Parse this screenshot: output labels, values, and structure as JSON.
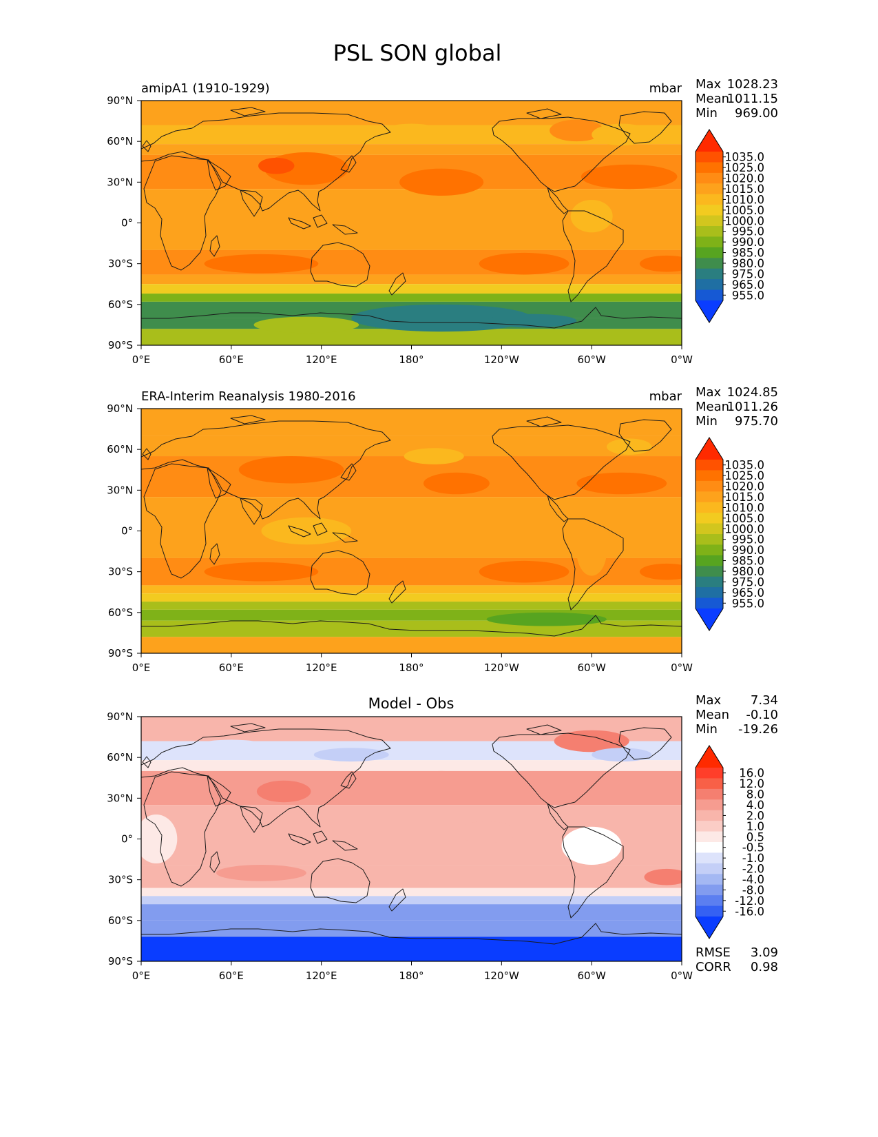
{
  "title": "PSL SON global",
  "chart_data": [
    {
      "type": "heatmap",
      "panel_title": "amipA1 (1910-1929)",
      "units": "mbar",
      "stats": [
        {
          "label": "Max",
          "value": "1028.23"
        },
        {
          "label": "Mean",
          "value": "1011.15"
        },
        {
          "label": "Min",
          "value": "969.00"
        }
      ],
      "x_ticks": [
        "0°E",
        "60°E",
        "120°E",
        "180°",
        "120°W",
        "60°W",
        "0°W"
      ],
      "y_ticks": [
        "90°N",
        "60°N",
        "30°N",
        "0°",
        "30°S",
        "60°S",
        "90°S"
      ],
      "xlim": [
        0,
        360
      ],
      "ylim": [
        -90,
        90
      ],
      "colorbar": {
        "levels": [
          "1035.0",
          "1025.0",
          "1020.0",
          "1015.0",
          "1010.0",
          "1005.0",
          "1000.0",
          "995.0",
          "990.0",
          "985.0",
          "980.0",
          "975.0",
          "965.0",
          "955.0"
        ],
        "colors": [
          "#ff2a00",
          "#ff5200",
          "#ff7200",
          "#ff8c14",
          "#fda21c",
          "#fbb81e",
          "#f2cb20",
          "#d2c61e",
          "#a9be1b",
          "#7fb218",
          "#57a420",
          "#3f8d4c",
          "#2a7e80",
          "#1f6fa3",
          "#1659d4",
          "#0a3dff"
        ]
      },
      "bands": [
        {
          "from": 90,
          "to": 72,
          "value": 1012
        },
        {
          "from": 72,
          "to": 58,
          "value": 1008
        },
        {
          "from": 58,
          "to": 50,
          "value": 1013
        },
        {
          "from": 50,
          "to": 25,
          "value": 1018
        },
        {
          "from": 25,
          "to": -20,
          "value": 1013
        },
        {
          "from": -20,
          "to": -38,
          "value": 1019
        },
        {
          "from": -38,
          "to": -45,
          "value": 1010
        },
        {
          "from": -45,
          "to": -52,
          "value": 1000
        },
        {
          "from": -52,
          "to": -58,
          "value": 988
        },
        {
          "from": -58,
          "to": -70,
          "value": 978
        },
        {
          "from": -70,
          "to": -78,
          "value": 976
        },
        {
          "from": -78,
          "to": -90,
          "value": 990
        }
      ],
      "blobs": [
        {
          "lon": 110,
          "lat": 40,
          "rlon": 28,
          "rlat": 12,
          "value": 1023
        },
        {
          "lon": 90,
          "lat": 42,
          "rlon": 12,
          "rlat": 6,
          "value": 1028
        },
        {
          "lon": 200,
          "lat": 30,
          "rlon": 28,
          "rlat": 10,
          "value": 1020
        },
        {
          "lon": 325,
          "lat": 34,
          "rlon": 32,
          "rlat": 9,
          "value": 1021
        },
        {
          "lon": 80,
          "lat": -30,
          "rlon": 38,
          "rlat": 7,
          "value": 1022
        },
        {
          "lon": 255,
          "lat": -30,
          "rlon": 30,
          "rlat": 8,
          "value": 1022
        },
        {
          "lon": 350,
          "lat": -30,
          "rlon": 18,
          "rlat": 6,
          "value": 1023
        },
        {
          "lon": 290,
          "lat": 68,
          "rlon": 18,
          "rlat": 8,
          "value": 1018
        },
        {
          "lon": 320,
          "lat": 65,
          "rlon": 20,
          "rlat": 8,
          "value": 1006
        },
        {
          "lon": 180,
          "lat": 68,
          "rlon": 18,
          "rlat": 5,
          "value": 1006
        },
        {
          "lon": 200,
          "lat": -70,
          "rlon": 60,
          "rlat": 10,
          "value": 969
        },
        {
          "lon": 110,
          "lat": -75,
          "rlon": 35,
          "rlat": 6,
          "value": 992
        },
        {
          "lon": 260,
          "lat": -72,
          "rlon": 30,
          "rlat": 5,
          "value": 972
        },
        {
          "lon": 300,
          "lat": 5,
          "rlon": 14,
          "rlat": 12,
          "value": 1008
        }
      ]
    },
    {
      "type": "heatmap",
      "panel_title": "ERA-Interim Reanalysis 1980-2016",
      "units": "mbar",
      "stats": [
        {
          "label": "Max",
          "value": "1024.85"
        },
        {
          "label": "Mean",
          "value": "1011.26"
        },
        {
          "label": "Min",
          "value": "975.70"
        }
      ],
      "x_ticks": [
        "0°E",
        "60°E",
        "120°E",
        "180°",
        "120°W",
        "60°W",
        "0°W"
      ],
      "y_ticks": [
        "90°N",
        "60°N",
        "30°N",
        "0°",
        "30°S",
        "60°S",
        "90°S"
      ],
      "xlim": [
        0,
        360
      ],
      "ylim": [
        -90,
        90
      ],
      "colorbar": {
        "levels": [
          "1035.0",
          "1025.0",
          "1020.0",
          "1015.0",
          "1010.0",
          "1005.0",
          "1000.0",
          "995.0",
          "990.0",
          "985.0",
          "980.0",
          "975.0",
          "965.0",
          "955.0"
        ],
        "colors": [
          "#ff2a00",
          "#ff5200",
          "#ff7200",
          "#ff8c14",
          "#fda21c",
          "#fbb81e",
          "#f2cb20",
          "#d2c61e",
          "#a9be1b",
          "#7fb218",
          "#57a420",
          "#3f8d4c",
          "#2a7e80",
          "#1f6fa3",
          "#1659d4",
          "#0a3dff"
        ]
      },
      "bands": [
        {
          "from": 90,
          "to": 70,
          "value": 1013
        },
        {
          "from": 70,
          "to": 55,
          "value": 1012
        },
        {
          "from": 55,
          "to": 25,
          "value": 1016
        },
        {
          "from": 25,
          "to": -20,
          "value": 1013
        },
        {
          "from": -20,
          "to": -40,
          "value": 1017
        },
        {
          "from": -40,
          "to": -46,
          "value": 1008
        },
        {
          "from": -46,
          "to": -52,
          "value": 1000
        },
        {
          "from": -52,
          "to": -58,
          "value": 991
        },
        {
          "from": -58,
          "to": -66,
          "value": 986
        },
        {
          "from": -66,
          "to": -78,
          "value": 990
        },
        {
          "from": -78,
          "to": -90,
          "value": 1012
        }
      ],
      "blobs": [
        {
          "lon": 100,
          "lat": 45,
          "rlon": 35,
          "rlat": 10,
          "value": 1021
        },
        {
          "lon": 210,
          "lat": 35,
          "rlon": 22,
          "rlat": 8,
          "value": 1020
        },
        {
          "lon": 320,
          "lat": 35,
          "rlon": 30,
          "rlat": 8,
          "value": 1020
        },
        {
          "lon": 80,
          "lat": -30,
          "rlon": 38,
          "rlat": 7,
          "value": 1020
        },
        {
          "lon": 255,
          "lat": -30,
          "rlon": 30,
          "rlat": 8,
          "value": 1022
        },
        {
          "lon": 350,
          "lat": -30,
          "rlon": 18,
          "rlat": 6,
          "value": 1023
        },
        {
          "lon": 195,
          "lat": 55,
          "rlon": 20,
          "rlat": 6,
          "value": 1006
        },
        {
          "lon": 325,
          "lat": 62,
          "rlon": 15,
          "rlat": 6,
          "value": 1006
        },
        {
          "lon": 270,
          "lat": -65,
          "rlon": 40,
          "rlat": 5,
          "value": 984
        },
        {
          "lon": 110,
          "lat": 0,
          "rlon": 30,
          "rlat": 10,
          "value": 1009
        },
        {
          "lon": 300,
          "lat": -15,
          "rlon": 10,
          "rlat": 18,
          "value": 1012
        }
      ]
    },
    {
      "type": "heatmap",
      "panel_title": "Model - Obs",
      "units": "",
      "stats": [
        {
          "label": "Max",
          "value": "7.34"
        },
        {
          "label": "Mean",
          "value": "-0.10"
        },
        {
          "label": "Min",
          "value": "-19.26"
        }
      ],
      "footer_stats": [
        {
          "label": "RMSE",
          "value": "3.09"
        },
        {
          "label": "CORR",
          "value": "0.98"
        }
      ],
      "x_ticks": [
        "0°E",
        "60°E",
        "120°E",
        "180°",
        "120°W",
        "60°W",
        "0°W"
      ],
      "y_ticks": [
        "90°N",
        "60°N",
        "30°N",
        "0°",
        "30°S",
        "60°S",
        "90°S"
      ],
      "xlim": [
        0,
        360
      ],
      "ylim": [
        -90,
        90
      ],
      "colorbar": {
        "levels": [
          "16.0",
          "12.0",
          "8.0",
          "4.0",
          "2.0",
          "1.0",
          "0.5",
          "-0.5",
          "-1.0",
          "-2.0",
          "-4.0",
          "-8.0",
          "-12.0",
          "-16.0"
        ],
        "colors": [
          "#ff2a00",
          "#ff3e2a",
          "#f86047",
          "#f57f70",
          "#f69c90",
          "#f8b5ab",
          "#fbcdc6",
          "#fde9e6",
          "#ffffff",
          "#dde3fb",
          "#c4cff7",
          "#a4b8f3",
          "#829cef",
          "#5c7ff0",
          "#3561f3",
          "#0a3dff"
        ]
      },
      "bands": [
        {
          "from": 90,
          "to": 72,
          "value": 1.5
        },
        {
          "from": 72,
          "to": 58,
          "value": -1.5
        },
        {
          "from": 58,
          "to": 50,
          "value": 0
        },
        {
          "from": 50,
          "to": 25,
          "value": 3
        },
        {
          "from": 25,
          "to": 0,
          "value": 1.2
        },
        {
          "from": 0,
          "to": -20,
          "value": 1.2
        },
        {
          "from": -20,
          "to": -36,
          "value": 1.8
        },
        {
          "from": -36,
          "to": -42,
          "value": 0
        },
        {
          "from": -42,
          "to": -48,
          "value": -3
        },
        {
          "from": -48,
          "to": -60,
          "value": -9
        },
        {
          "from": -60,
          "to": -72,
          "value": -11
        },
        {
          "from": -72,
          "to": -90,
          "value": -17
        }
      ],
      "blobs": [
        {
          "lon": 95,
          "lat": 35,
          "rlon": 18,
          "rlat": 8,
          "value": 6
        },
        {
          "lon": 200,
          "lat": 40,
          "rlon": 28,
          "rlat": 10,
          "value": 3
        },
        {
          "lon": 300,
          "lat": 72,
          "rlon": 25,
          "rlat": 8,
          "value": 4
        },
        {
          "lon": 60,
          "lat": 68,
          "rlon": 25,
          "rlat": 5,
          "value": -2
        },
        {
          "lon": 140,
          "lat": 62,
          "rlon": 25,
          "rlat": 5,
          "value": -3
        },
        {
          "lon": 320,
          "lat": 62,
          "rlon": 20,
          "rlat": 5,
          "value": -3
        },
        {
          "lon": 10,
          "lat": 0,
          "rlon": 14,
          "rlat": 18,
          "value": 0
        },
        {
          "lon": 300,
          "lat": -5,
          "rlon": 20,
          "rlat": 14,
          "value": -1
        },
        {
          "lon": 80,
          "lat": -25,
          "rlon": 30,
          "rlat": 6,
          "value": 3
        },
        {
          "lon": 350,
          "lat": -28,
          "rlon": 15,
          "rlat": 6,
          "value": 4
        },
        {
          "lon": 230,
          "lat": 5,
          "rlon": 20,
          "rlat": 8,
          "value": 1
        }
      ]
    }
  ]
}
